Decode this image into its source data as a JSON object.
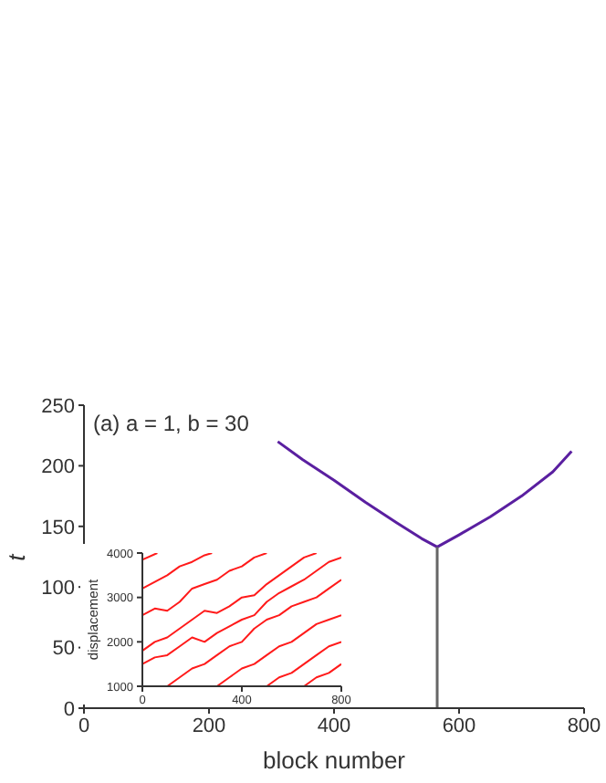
{
  "chart_data": [
    {
      "type": "line",
      "annotations": [
        "(a) a = 1, b = 30"
      ],
      "xlabel": "block number",
      "ylabel": "t",
      "xlim": [
        0,
        800
      ],
      "xticks": [
        0,
        200,
        400,
        600,
        800
      ],
      "ylim": [
        0,
        250
      ],
      "yticks": [
        0,
        50,
        100,
        150,
        200,
        250
      ],
      "series": [
        {
          "color": "#5a1fa0",
          "x": [
            310,
            350,
            400,
            450,
            500,
            540,
            565,
            600,
            650,
            700,
            750,
            780
          ],
          "values": [
            220,
            205,
            188,
            170,
            153,
            140,
            133,
            143,
            158,
            175,
            195,
            212
          ]
        },
        {
          "color": "#666666",
          "x": [
            565,
            565
          ],
          "values": [
            0,
            133
          ]
        }
      ]
    },
    {
      "type": "line",
      "ylabel": "displacement",
      "xlim": [
        0,
        800
      ],
      "xticks": [
        0,
        400,
        800
      ],
      "ylim": [
        1000,
        4000
      ],
      "yticks": [
        1000,
        2000,
        3000,
        4000
      ],
      "series": [
        {
          "color": "#ff1a1a",
          "x": [
            0,
            60
          ],
          "values": [
            3850,
            4000
          ]
        },
        {
          "color": "#ff1a1a",
          "x": [
            0,
            50,
            100,
            150,
            200,
            250,
            280
          ],
          "values": [
            3200,
            3350,
            3500,
            3700,
            3800,
            3950,
            4000
          ]
        },
        {
          "color": "#ff1a1a",
          "x": [
            0,
            50,
            100,
            150,
            200,
            250,
            300,
            350,
            400,
            450,
            500
          ],
          "values": [
            2600,
            2750,
            2700,
            2900,
            3200,
            3300,
            3400,
            3600,
            3700,
            3900,
            4000
          ]
        },
        {
          "color": "#ff1a1a",
          "x": [
            0,
            50,
            100,
            150,
            200,
            250,
            300,
            350,
            400,
            450,
            500,
            550,
            600,
            650,
            700
          ],
          "values": [
            1800,
            2000,
            2100,
            2300,
            2500,
            2700,
            2650,
            2800,
            3000,
            3050,
            3300,
            3500,
            3700,
            3900,
            4000
          ]
        },
        {
          "color": "#ff1a1a",
          "x": [
            0,
            50,
            100,
            150,
            200,
            250,
            300,
            350,
            400,
            450,
            500,
            550,
            600,
            650,
            700,
            750,
            800
          ],
          "values": [
            1500,
            1650,
            1700,
            1900,
            2100,
            2000,
            2200,
            2350,
            2500,
            2600,
            2900,
            3100,
            3250,
            3400,
            3600,
            3800,
            3900
          ]
        },
        {
          "color": "#ff1a1a",
          "x": [
            100,
            150,
            200,
            250,
            300,
            350,
            400,
            450,
            500,
            550,
            600,
            650,
            700,
            750,
            800
          ],
          "values": [
            1000,
            1200,
            1400,
            1500,
            1700,
            1900,
            2000,
            2300,
            2500,
            2600,
            2800,
            2900,
            3000,
            3200,
            3400
          ]
        },
        {
          "color": "#ff1a1a",
          "x": [
            300,
            350,
            400,
            450,
            500,
            550,
            600,
            650,
            700,
            750,
            800
          ],
          "values": [
            1000,
            1200,
            1400,
            1500,
            1700,
            1900,
            2000,
            2200,
            2400,
            2500,
            2600
          ]
        },
        {
          "color": "#ff1a1a",
          "x": [
            500,
            550,
            600,
            650,
            700,
            750,
            800
          ],
          "values": [
            1000,
            1200,
            1300,
            1500,
            1700,
            1900,
            2000
          ]
        },
        {
          "color": "#ff1a1a",
          "x": [
            650,
            700,
            750,
            800
          ],
          "values": [
            1000,
            1200,
            1300,
            1500
          ]
        }
      ]
    }
  ]
}
